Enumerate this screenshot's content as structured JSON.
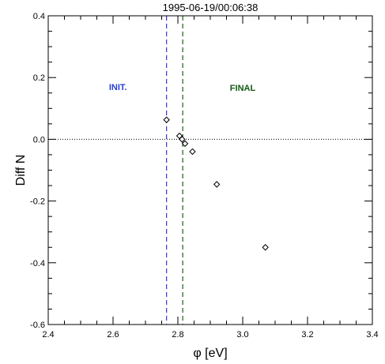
{
  "chart_data": {
    "type": "scatter",
    "title": "1995-06-19/00:06:38",
    "xlabel": "φ [eV]",
    "ylabel": "Diff N",
    "xlim": [
      2.4,
      3.4
    ],
    "ylim": [
      -0.6,
      0.4
    ],
    "x_ticks": [
      "2.4",
      "2.6",
      "2.8",
      "3.0",
      "3.2",
      "3.4"
    ],
    "y_ticks": [
      "-0.6",
      "-0.4",
      "-0.2",
      "0.0",
      "0.2",
      "0.4"
    ],
    "x_tick_values": [
      2.4,
      2.6,
      2.8,
      3.0,
      3.2,
      3.4
    ],
    "y_tick_values": [
      -0.6,
      -0.4,
      -0.2,
      0.0,
      0.2,
      0.4
    ],
    "grid": false,
    "marker": "diamond-open",
    "points": [
      {
        "x": 2.765,
        "y": 0.063
      },
      {
        "x": 2.805,
        "y": 0.011
      },
      {
        "x": 2.813,
        "y": 0.0
      },
      {
        "x": 2.822,
        "y": -0.014
      },
      {
        "x": 2.845,
        "y": -0.04
      },
      {
        "x": 2.92,
        "y": -0.146
      },
      {
        "x": 3.07,
        "y": -0.35
      }
    ],
    "reference_lines": [
      {
        "orientation": "vertical",
        "x": 2.765,
        "style": "dashed",
        "color": "#3333dd"
      },
      {
        "orientation": "vertical",
        "x": 2.815,
        "style": "dashed",
        "color": "#116611"
      },
      {
        "orientation": "horizontal",
        "y": 0.0,
        "style": "dotted",
        "color": "#000000"
      }
    ],
    "annotations": [
      {
        "text": "INIT.",
        "x": 2.615,
        "y": 0.16,
        "color": "#2a3fd6"
      },
      {
        "text": "FINAL",
        "x": 3.0,
        "y": 0.157,
        "color": "#0f5a0f"
      }
    ]
  }
}
